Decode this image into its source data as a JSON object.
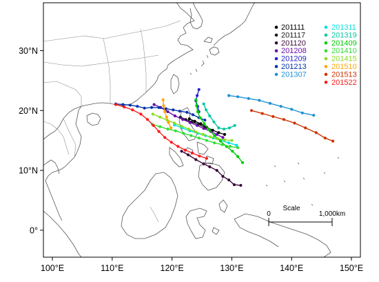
{
  "map": {
    "lon_range": [
      98.5,
      151.5
    ],
    "lat_range": [
      -4.5,
      38
    ],
    "lon_ticks": [
      {
        "value": 100,
        "label": "100°E"
      },
      {
        "value": 110,
        "label": "110°E"
      },
      {
        "value": 120,
        "label": "120°E"
      },
      {
        "value": 130,
        "label": "130°E"
      },
      {
        "value": 140,
        "label": "140°E"
      },
      {
        "value": 150,
        "label": "150°E"
      }
    ],
    "lat_ticks": [
      {
        "value": 0,
        "label": "0°"
      },
      {
        "value": 10,
        "label": "10°N"
      },
      {
        "value": 20,
        "label": "20°N"
      },
      {
        "value": 30,
        "label": "30°N"
      }
    ],
    "scale_bar": {
      "title": "Scale",
      "left_label": "0",
      "right_label": "1,000km",
      "km": 1000
    }
  },
  "legend": {
    "placement": "top-right",
    "columns": 3
  },
  "tracks": [
    {
      "id": "201111",
      "color": "#000000",
      "points": [
        [
          128.8,
          16.0
        ],
        [
          127.8,
          16.3
        ],
        [
          126.8,
          16.7
        ],
        [
          125.8,
          17.2
        ],
        [
          124.8,
          17.8
        ],
        [
          123.8,
          18.2
        ],
        [
          122.9,
          18.6
        ]
      ]
    },
    {
      "id": "201117",
      "color": "#1a1a1a",
      "points": [
        [
          125.5,
          17.2
        ],
        [
          124.4,
          17.7
        ],
        [
          123.3,
          18.1
        ],
        [
          122.3,
          18.5
        ],
        [
          121.4,
          18.9
        ]
      ]
    },
    {
      "id": "201120",
      "color": "#3a0a3a",
      "points": [
        [
          131.5,
          7.5
        ],
        [
          130.4,
          7.6
        ],
        [
          129.5,
          8.4
        ],
        [
          128.5,
          9.0
        ],
        [
          127.5,
          10.0
        ],
        [
          126.3,
          10.6
        ],
        [
          125.3,
          11.1
        ],
        [
          124.0,
          11.8
        ],
        [
          122.7,
          12.6
        ],
        [
          121.6,
          13.2
        ]
      ]
    },
    {
      "id": "201208",
      "color": "#6a0dad",
      "points": [
        [
          128.5,
          15.5
        ],
        [
          127.5,
          16.0
        ],
        [
          126.5,
          16.5
        ],
        [
          125.3,
          17.0
        ],
        [
          124.2,
          17.5
        ],
        [
          123.0,
          18.0
        ],
        [
          121.8,
          18.5
        ],
        [
          120.5,
          19.1
        ],
        [
          119.3,
          19.8
        ],
        [
          118.1,
          20.5
        ],
        [
          117.0,
          21.0
        ]
      ]
    },
    {
      "id": "201209",
      "color": "#2222cc",
      "points": [
        [
          124.5,
          23.5
        ],
        [
          124.2,
          22.5
        ],
        [
          124.0,
          21.6
        ],
        [
          124.3,
          20.7
        ],
        [
          124.5,
          19.8
        ]
      ]
    },
    {
      "id": "201213",
      "color": "#0033aa",
      "points": [
        [
          125.5,
          18.4
        ],
        [
          124.5,
          18.8
        ],
        [
          123.5,
          19.3
        ],
        [
          122.5,
          19.7
        ],
        [
          121.3,
          19.9
        ],
        [
          120.2,
          20.1
        ],
        [
          119.0,
          20.3
        ],
        [
          117.8,
          20.5
        ],
        [
          116.6,
          20.5
        ],
        [
          115.4,
          20.4
        ],
        [
          114.2,
          20.7
        ],
        [
          113.0,
          20.9
        ],
        [
          111.8,
          21.0
        ],
        [
          110.6,
          21.1
        ]
      ]
    },
    {
      "id": "201307",
      "color": "#1e90d4",
      "points": [
        [
          129.5,
          22.5
        ],
        [
          131.0,
          22.3
        ],
        [
          132.8,
          22.0
        ],
        [
          134.6,
          21.7
        ],
        [
          136.4,
          21.2
        ],
        [
          138.2,
          20.7
        ],
        [
          140.0,
          20.2
        ],
        [
          141.8,
          19.6
        ],
        [
          143.7,
          19.2
        ]
      ]
    },
    {
      "id": "201311",
      "color": "#00e0e0",
      "points": [
        [
          130.8,
          14.2
        ],
        [
          129.5,
          14.6
        ],
        [
          128.2,
          15.0
        ],
        [
          126.9,
          15.4
        ],
        [
          125.6,
          15.8
        ],
        [
          124.3,
          16.2
        ],
        [
          123.0,
          16.6
        ],
        [
          121.7,
          17.1
        ],
        [
          120.4,
          17.6
        ]
      ]
    },
    {
      "id": "201319",
      "color": "#00c8a0",
      "points": [
        [
          130.5,
          17.5
        ],
        [
          129.6,
          17.1
        ],
        [
          128.7,
          16.9
        ],
        [
          127.8,
          17.1
        ],
        [
          127.0,
          18.1
        ],
        [
          126.3,
          19.1
        ],
        [
          125.7,
          20.1
        ],
        [
          125.3,
          21.1
        ]
      ]
    },
    {
      "id": "201409",
      "color": "#00cc00",
      "points": [
        [
          131.8,
          11.3
        ],
        [
          131.0,
          12.3
        ],
        [
          130.1,
          13.2
        ],
        [
          129.1,
          14.0
        ],
        [
          128.1,
          14.9
        ],
        [
          127.1,
          15.8
        ],
        [
          126.2,
          16.8
        ],
        [
          125.4,
          17.8
        ],
        [
          124.7,
          18.8
        ],
        [
          124.3,
          19.8
        ],
        [
          124.1,
          20.8
        ],
        [
          124.0,
          21.8
        ]
      ]
    },
    {
      "id": "201410",
      "color": "#33dd33",
      "points": [
        [
          131.0,
          13.8
        ],
        [
          129.7,
          14.0
        ],
        [
          128.4,
          14.3
        ],
        [
          127.1,
          14.6
        ],
        [
          125.8,
          15.0
        ],
        [
          124.5,
          15.4
        ],
        [
          123.2,
          15.8
        ],
        [
          121.9,
          16.2
        ],
        [
          120.6,
          16.6
        ],
        [
          119.3,
          16.9
        ],
        [
          118.0,
          17.3
        ],
        [
          116.7,
          17.7
        ]
      ]
    },
    {
      "id": "201415",
      "color": "#88dd22",
      "points": [
        [
          130.0,
          15.0
        ],
        [
          128.8,
          15.1
        ],
        [
          127.6,
          15.3
        ],
        [
          126.4,
          15.6
        ],
        [
          125.2,
          16.0
        ],
        [
          124.0,
          16.4
        ],
        [
          122.8,
          16.9
        ],
        [
          121.6,
          17.4
        ],
        [
          120.4,
          17.9
        ],
        [
          119.2,
          18.4
        ],
        [
          118.0,
          18.9
        ],
        [
          116.8,
          19.4
        ]
      ]
    },
    {
      "id": "201510",
      "color": "#ffa500",
      "points": [
        [
          118.5,
          21.8
        ],
        [
          118.6,
          20.8
        ],
        [
          118.8,
          19.8
        ],
        [
          119.1,
          18.9
        ],
        [
          119.4,
          18.0
        ],
        [
          119.8,
          17.1
        ]
      ]
    },
    {
      "id": "201513",
      "color": "#cc3300",
      "points": [
        [
          133.3,
          20.0
        ],
        [
          135.1,
          19.5
        ],
        [
          136.9,
          19.0
        ],
        [
          138.7,
          18.5
        ],
        [
          140.5,
          17.9
        ],
        [
          142.3,
          17.1
        ],
        [
          144.1,
          16.3
        ],
        [
          145.6,
          15.4
        ],
        [
          146.9,
          14.9
        ]
      ]
    },
    {
      "id": "201522",
      "color": "#ff1a1a",
      "points": [
        [
          125.8,
          12.0
        ],
        [
          124.6,
          12.4
        ],
        [
          123.4,
          12.9
        ],
        [
          122.2,
          13.4
        ],
        [
          121.0,
          14.0
        ],
        [
          119.9,
          14.7
        ],
        [
          118.8,
          15.5
        ],
        [
          117.8,
          16.5
        ],
        [
          116.9,
          17.5
        ],
        [
          115.9,
          18.5
        ],
        [
          114.8,
          19.4
        ],
        [
          113.4,
          20.1
        ],
        [
          112.0,
          20.6
        ],
        [
          110.6,
          21.0
        ]
      ]
    }
  ]
}
